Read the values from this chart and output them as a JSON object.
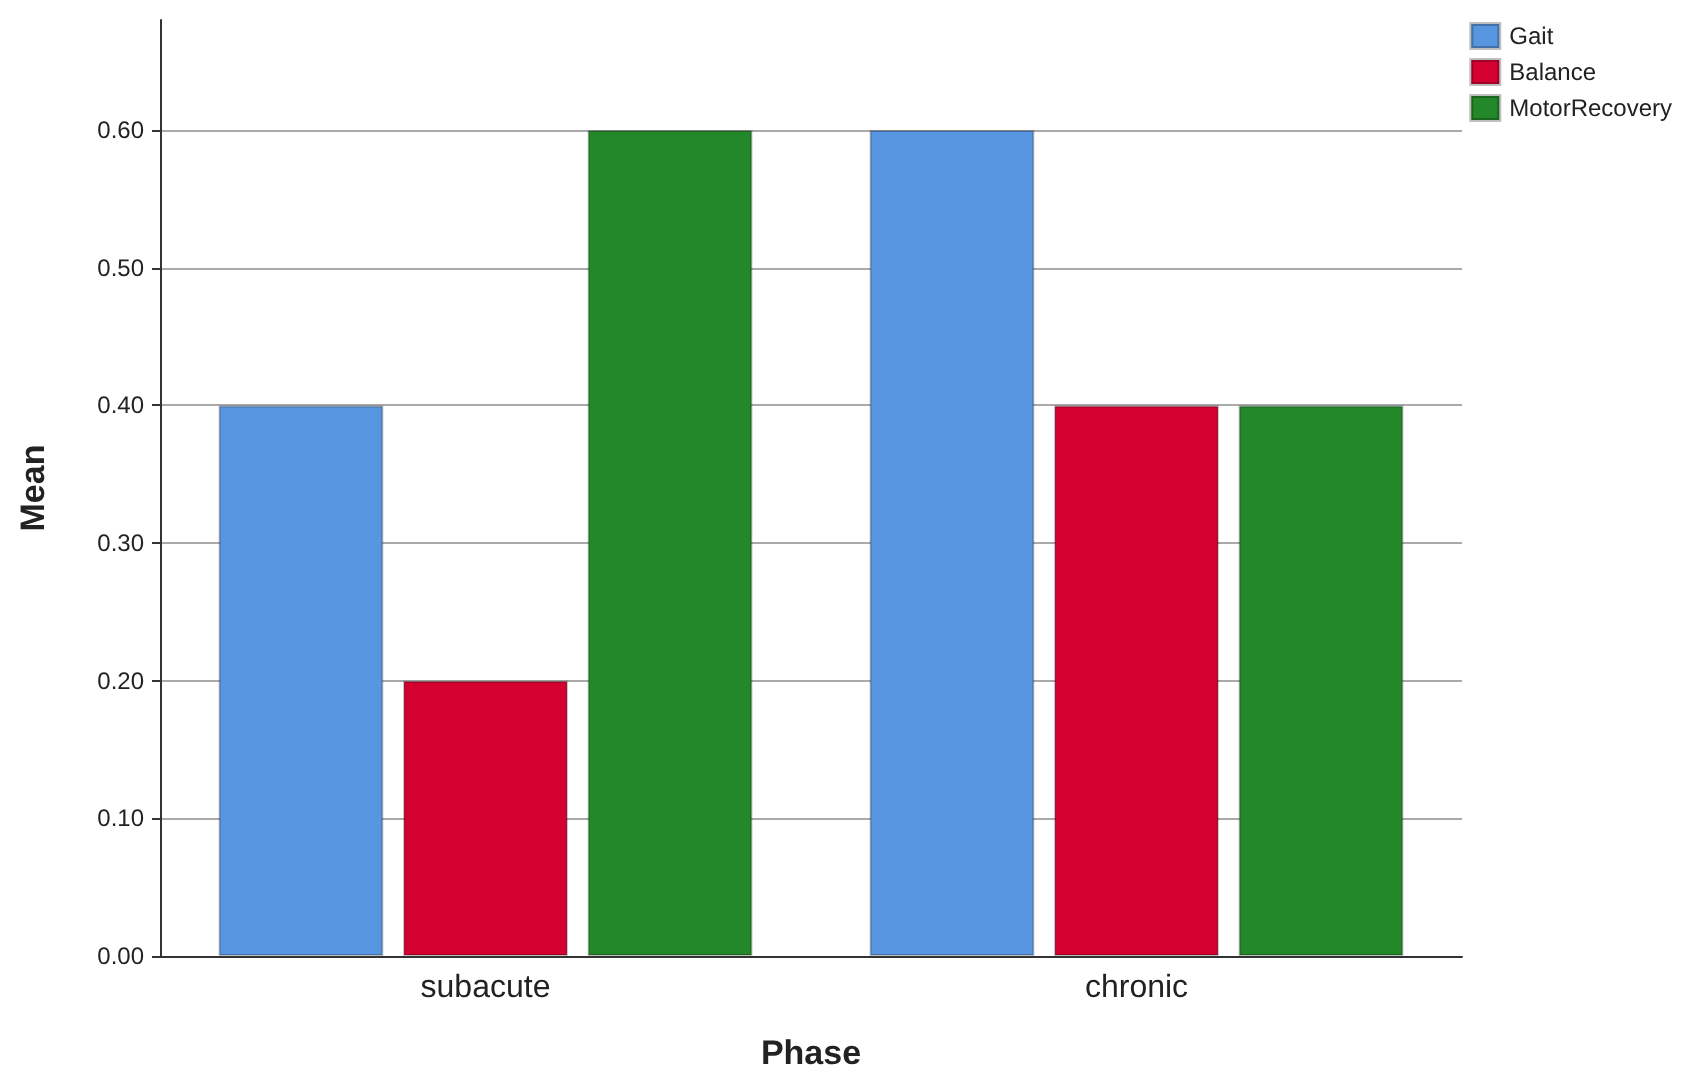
{
  "chart_data": {
    "type": "bar",
    "xlabel": "Phase",
    "ylabel": "Mean",
    "categories": [
      "subacute",
      "chronic"
    ],
    "series": [
      {
        "name": "Gait",
        "color": "#5896e2",
        "values": [
          0.4,
          0.6
        ]
      },
      {
        "name": "Balance",
        "color": "#d40030",
        "values": [
          0.2,
          0.4
        ]
      },
      {
        "name": "MotorRecovery",
        "color": "#23882a",
        "values": [
          0.6,
          0.4
        ]
      }
    ],
    "ylim": [
      0,
      0.68
    ],
    "yticks": [
      {
        "value": 0,
        "label": "0.00"
      },
      {
        "value": 0.1,
        "label": "0.10"
      },
      {
        "value": 0.2,
        "label": "0.20"
      },
      {
        "value": 0.3,
        "label": "0.30"
      },
      {
        "value": 0.4,
        "label": "0.40"
      },
      {
        "value": 0.5,
        "label": "0.50"
      },
      {
        "value": 0.6,
        "label": "0.60"
      }
    ],
    "grid": "y",
    "legend": "top right"
  }
}
